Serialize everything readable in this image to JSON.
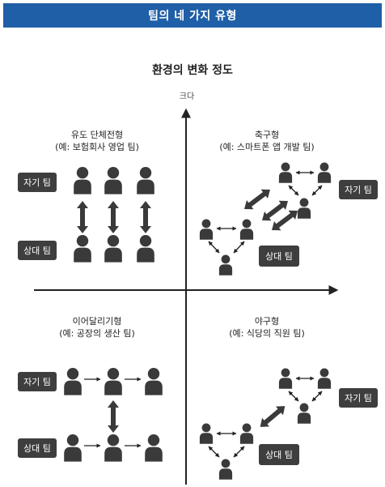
{
  "banner": {
    "title": "팀의 네 가지 유형"
  },
  "diagram": {
    "title": "환경의 변화 정도",
    "axis_top_label": "크다",
    "quadrants": {
      "top_left": {
        "name": "유도 단체전형",
        "example": "(예: 보험회사 영업 팀)"
      },
      "top_right": {
        "name": "축구형",
        "example": "(예: 스마트폰 앱 개발 팀)"
      },
      "bottom_left": {
        "name": "이어달리기형",
        "example": "(예: 공장의 생산 팀)"
      },
      "bottom_right": {
        "name": "야구형",
        "example": "(예: 식당의 직원 팀)"
      }
    },
    "labels": {
      "own_team": "자기 팀",
      "opponent_team": "상대 팀"
    },
    "colors": {
      "banner": "#1f5fa8",
      "figure": "#3a3a3a",
      "badge": "#3e3e3e"
    }
  }
}
